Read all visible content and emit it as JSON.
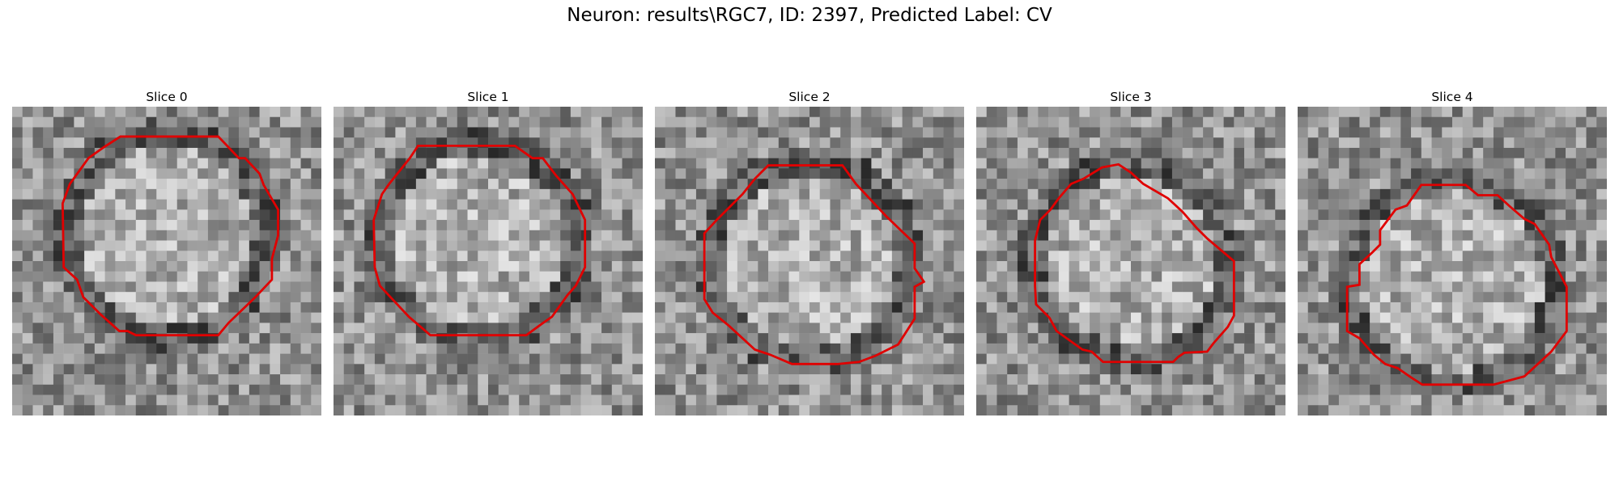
{
  "figure": {
    "title": "Neuron: results\\RGC7, ID: 2397, Predicted Label: CV",
    "contour_color": "#e00000",
    "panels": [
      {
        "title": "Slice 0"
      },
      {
        "title": "Slice 1"
      },
      {
        "title": "Slice 2"
      },
      {
        "title": "Slice 3"
      },
      {
        "title": "Slice 4"
      }
    ]
  }
}
